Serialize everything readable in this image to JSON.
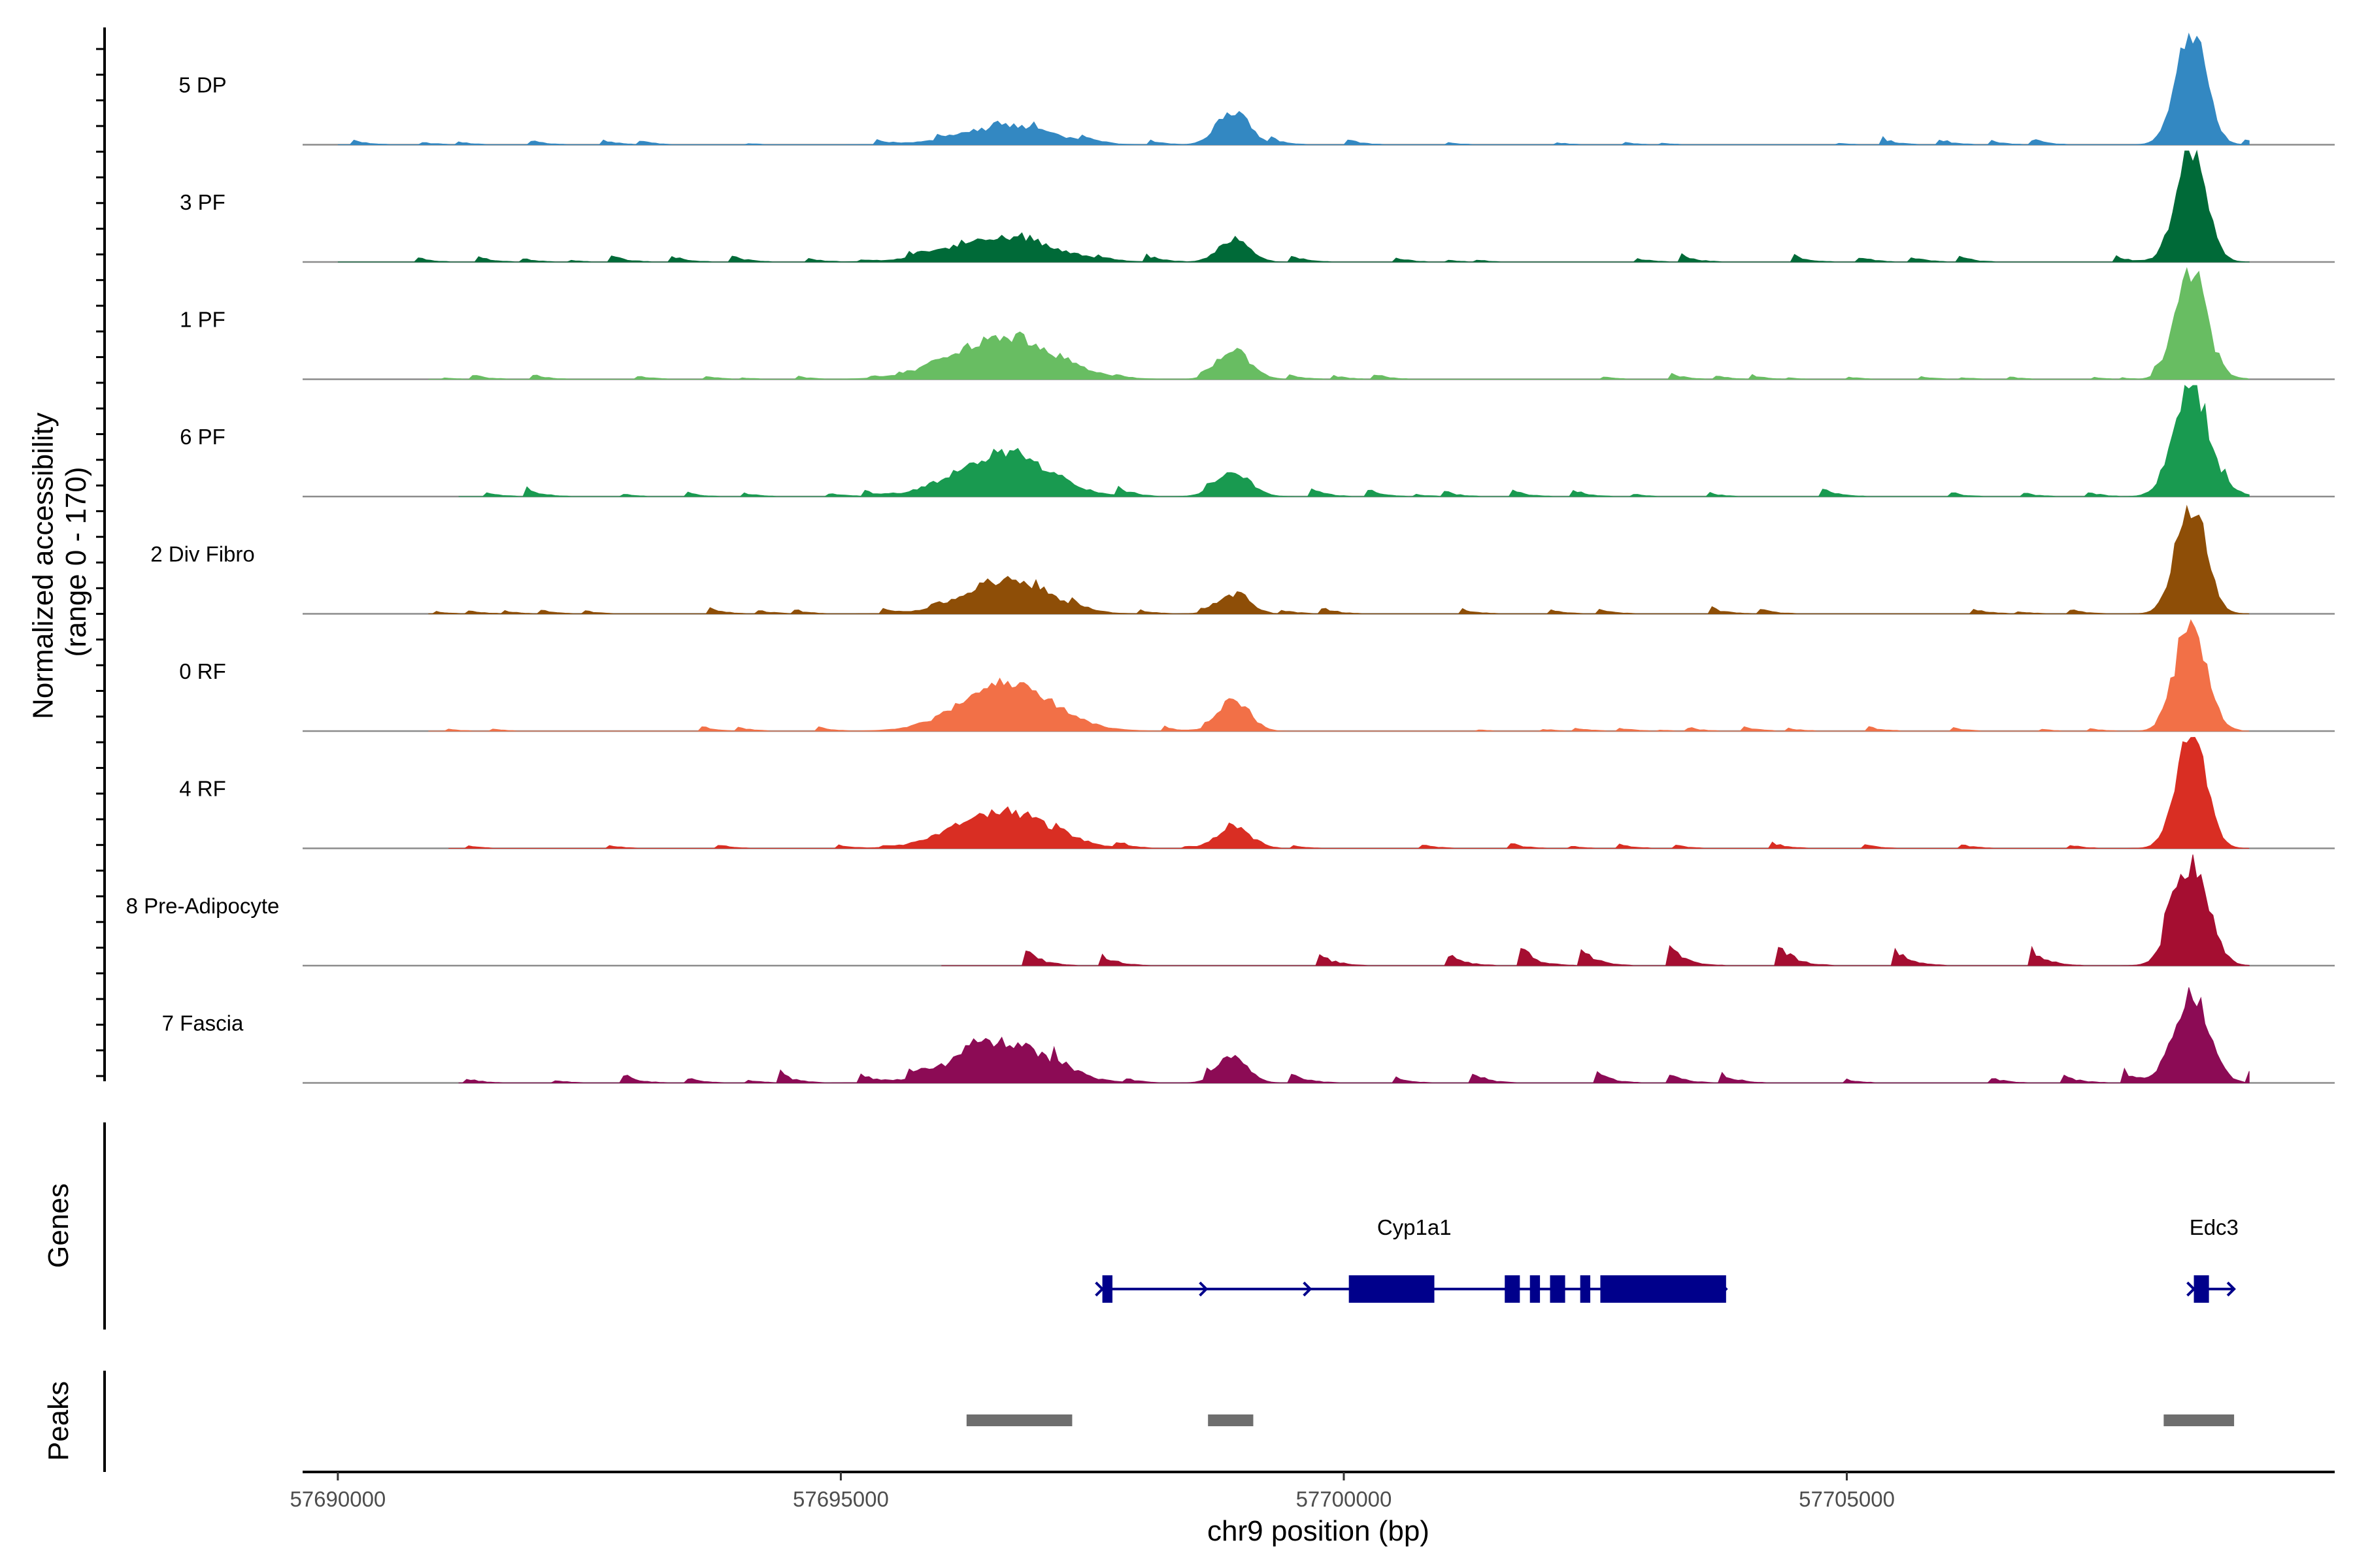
{
  "chart_data": {
    "type": "area",
    "xlabel": "chr9 position (bp)",
    "ylabel": "Normalized accessibility\n(range 0 - 170)",
    "ylabel_lines": [
      "Normalized accessibility",
      "(range 0 - 170)"
    ],
    "y_range": [
      0,
      170
    ],
    "xlim": [
      57689650,
      57709850
    ],
    "x_ticks": [
      57690000,
      57695000,
      57700000,
      57705000
    ],
    "x_tick_labels": [
      "57690000",
      "57695000",
      "57700000",
      "57705000"
    ],
    "tracks": [
      {
        "name": "5 DP",
        "color": "#3388c2",
        "peaks": [
          [
            57696650,
            0.16,
            450
          ],
          [
            57698900,
            0.28,
            160
          ],
          [
            57708420,
            1.0,
            150
          ]
        ],
        "noise_level": 0.05,
        "noise_density": 0.5,
        "range": [
          57690000,
          57709000
        ],
        "seed": 11
      },
      {
        "name": "3 PF",
        "color": "#006a38",
        "peaks": [
          [
            57696600,
            0.22,
            500
          ],
          [
            57698900,
            0.19,
            150
          ],
          [
            57708420,
            1.0,
            150
          ]
        ],
        "noise_level": 0.06,
        "noise_density": 0.45,
        "range": [
          57690000,
          57709000
        ],
        "seed": 23
      },
      {
        "name": "1 PF",
        "color": "#68bd62",
        "peaks": [
          [
            57696600,
            0.36,
            500
          ],
          [
            57698900,
            0.27,
            150
          ],
          [
            57708420,
            1.0,
            150
          ]
        ],
        "noise_level": 0.05,
        "noise_density": 0.6,
        "range": [
          57690900,
          57709000
        ],
        "seed": 37
      },
      {
        "name": "6 PF",
        "color": "#199a50",
        "peaks": [
          [
            57696600,
            0.38,
            450
          ],
          [
            57698900,
            0.21,
            170
          ],
          [
            57708420,
            1.0,
            170
          ]
        ],
        "noise_level": 0.08,
        "noise_density": 0.6,
        "range": [
          57691200,
          57709000
        ],
        "seed": 41
      },
      {
        "name": "2 Div Fibro",
        "color": "#8e4e07",
        "peaks": [
          [
            57696650,
            0.3,
            400
          ],
          [
            57698900,
            0.17,
            150
          ],
          [
            57708420,
            1.0,
            150
          ]
        ],
        "noise_level": 0.06,
        "noise_density": 0.6,
        "range": [
          57690900,
          57709000
        ],
        "seed": 53
      },
      {
        "name": "0 RF",
        "color": "#f27047",
        "peaks": [
          [
            57696650,
            0.42,
            450
          ],
          [
            57698900,
            0.27,
            150
          ],
          [
            57708420,
            1.0,
            150
          ]
        ],
        "noise_level": 0.04,
        "noise_density": 0.55,
        "range": [
          57690900,
          57709000
        ],
        "seed": 61
      },
      {
        "name": "4 RF",
        "color": "#d92e23",
        "peaks": [
          [
            57696600,
            0.34,
            450
          ],
          [
            57698900,
            0.21,
            150
          ],
          [
            57708420,
            1.0,
            150
          ]
        ],
        "noise_level": 0.05,
        "noise_density": 0.5,
        "range": [
          57691100,
          57709000
        ],
        "seed": 73
      },
      {
        "name": "8 Pre-Adipocyte",
        "color": "#a50e31",
        "peaks": [
          [
            57708420,
            0.9,
            170
          ]
        ],
        "noise_level": 0.22,
        "noise_density": 0.35,
        "range": [
          57696000,
          57709000
        ],
        "seed": 89
      },
      {
        "name": "7 Fascia",
        "color": "#8c0b55",
        "peaks": [
          [
            57696600,
            0.36,
            450
          ],
          [
            57698900,
            0.21,
            150
          ],
          [
            57708420,
            0.8,
            170
          ]
        ],
        "noise_level": 0.1,
        "noise_density": 0.6,
        "range": [
          57691200,
          57709000
        ],
        "seed": 97
      }
    ],
    "genes_track_label": "Genes",
    "genes": [
      {
        "name": "Cyp1a1",
        "start": 57697600,
        "end": 57703800,
        "strand": "+",
        "exons": [
          [
            57697600,
            57697700
          ],
          [
            57700050,
            57700900
          ],
          [
            57701600,
            57701750
          ],
          [
            57701850,
            57701950
          ],
          [
            57702050,
            57702200
          ],
          [
            57702350,
            57702450
          ],
          [
            57702550,
            57703800
          ]
        ]
      },
      {
        "name": "Edc3",
        "start": 57708450,
        "end": 57708850,
        "strand": "+",
        "exons": [
          [
            57708450,
            57708600
          ]
        ]
      }
    ],
    "peaks_track_label": "Peaks",
    "peak_regions": [
      [
        57696250,
        57697300
      ],
      [
        57698650,
        57699100
      ],
      [
        57708150,
        57708850
      ]
    ]
  }
}
